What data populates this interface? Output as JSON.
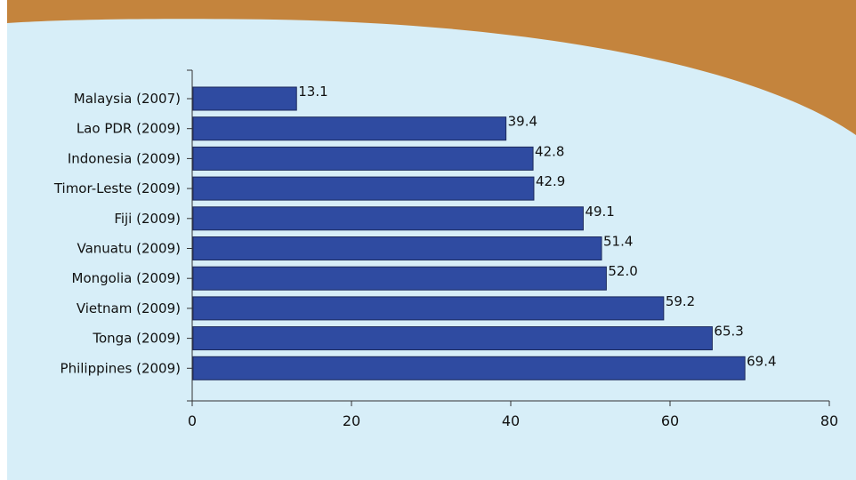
{
  "colors": {
    "panel_background": "#d7eef8",
    "swoosh": "#c4843d",
    "bar_fill": "#2f4ba1",
    "bar_stroke": "#1c2a5c",
    "axis": "#333333",
    "text": "#111111"
  },
  "chart_data": {
    "type": "bar",
    "orientation": "horizontal",
    "categories": [
      "Malaysia (2007)",
      "Lao PDR (2009)",
      "Indonesia (2009)",
      "Timor-Leste (2009)",
      "Fiji (2009)",
      "Vanuatu (2009)",
      "Mongolia (2009)",
      "Vietnam (2009)",
      "Tonga (2009)",
      "Philippines (2009)"
    ],
    "values": [
      13.1,
      39.4,
      42.8,
      42.9,
      49.1,
      51.4,
      52.0,
      59.2,
      65.3,
      69.4
    ],
    "value_labels": [
      "13.1",
      "39.4",
      "42.8",
      "42.9",
      "49.1",
      "51.4",
      "52.0",
      "59.2",
      "65.3",
      "69.4"
    ],
    "xlim": [
      0,
      80
    ],
    "xticks": [
      "0",
      "20",
      "40",
      "60",
      "80"
    ],
    "grid": false,
    "legend": "none"
  }
}
